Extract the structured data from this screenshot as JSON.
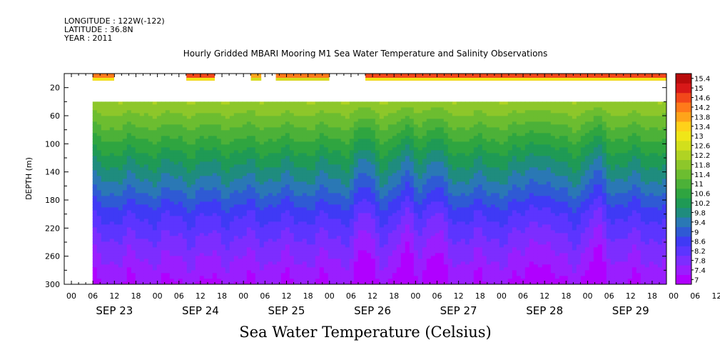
{
  "header": {
    "longitude": "LONGITUDE : 122W(-122)",
    "latitude": "LATITUDE : 36.8N",
    "year": "YEAR : 2011"
  },
  "chart_data": {
    "type": "heatmap",
    "title": "Hourly Gridded MBARI Mooring M1 Sea Water Temperature and Salinity Observations",
    "xlabel": "Sea Water Temperature (Celsius)",
    "ylabel": "DEPTH (m)",
    "x_axis": {
      "start": "2011-09-22T22:00",
      "end": "2011-09-29T22:00",
      "hour_ticks": [
        "00",
        "06",
        "12",
        "18",
        "00",
        "06",
        "12",
        "18",
        "00",
        "06",
        "12",
        "18",
        "00",
        "06",
        "12",
        "18",
        "00",
        "06",
        "12",
        "18",
        "00",
        "06",
        "12",
        "18",
        "00",
        "06",
        "12",
        "18",
        "00",
        "06",
        "12",
        "18"
      ],
      "day_labels": [
        "SEP 23",
        "SEP 24",
        "SEP 25",
        "SEP 26",
        "SEP 27",
        "SEP 28",
        "SEP 29"
      ]
    },
    "y_axis": {
      "range": [
        0,
        300
      ],
      "ticks": [
        20,
        60,
        100,
        140,
        180,
        220,
        260,
        300
      ],
      "inverted": true
    },
    "colorbar": {
      "levels": [
        7,
        7.4,
        7.8,
        8.2,
        8.6,
        9,
        9.4,
        9.8,
        10.2,
        10.6,
        11,
        11.4,
        11.8,
        12.2,
        12.6,
        13,
        13.4,
        13.8,
        14.2,
        14.6,
        15,
        15.4
      ],
      "labels": [
        "7",
        "7.4",
        "7.8",
        "8.2",
        "8.6",
        "9",
        "9.4",
        "9.8",
        "10.2",
        "10.6",
        "11",
        "11.4",
        "11.8",
        "12.2",
        "12.6",
        "13",
        "13.4",
        "13.8",
        "14.2",
        "14.6",
        "15",
        "15.4"
      ],
      "colors": [
        "#b000ff",
        "#9a1eff",
        "#7d2dff",
        "#5c35ff",
        "#3f3af5",
        "#2f5ad4",
        "#2a78b5",
        "#1f8c7e",
        "#1f9a55",
        "#2fa540",
        "#4cb138",
        "#6cbd30",
        "#8dc72a",
        "#b0d323",
        "#d2df1c",
        "#f0e618",
        "#ffd11a",
        "#ffa41a",
        "#ff7a1a",
        "#f2471a",
        "#d81818",
        "#b80c0c"
      ]
    },
    "surface_segments": [
      {
        "start_day": 0.33,
        "end_day": 0.58,
        "temperature": 14.4
      },
      {
        "start_day": 1.42,
        "end_day": 1.75,
        "temperature": 14.6
      },
      {
        "start_day": 2.17,
        "end_day": 2.29,
        "temperature": 14.0
      },
      {
        "start_day": 2.46,
        "end_day": 3.08,
        "temperature": 14.2
      },
      {
        "start_day": 3.5,
        "end_day": 7.0,
        "temperature": 14.6
      }
    ],
    "profile_start_day": 0.33,
    "profile_top_depth": 40,
    "profile": [
      {
        "depth": 40,
        "temperature": 12.2
      },
      {
        "depth": 80,
        "temperature": 11.3
      },
      {
        "depth": 120,
        "temperature": 10.4
      },
      {
        "depth": 160,
        "temperature": 9.6
      },
      {
        "depth": 200,
        "temperature": 8.7
      },
      {
        "depth": 240,
        "temperature": 8.1
      },
      {
        "depth": 280,
        "temperature": 7.6
      },
      {
        "depth": 300,
        "temperature": 7.4
      }
    ],
    "time_variation": {
      "cold_days": [
        3.5,
        4.0,
        4.3,
        5.5,
        6.2
      ],
      "anomaly_celsius": -0.5
    }
  }
}
